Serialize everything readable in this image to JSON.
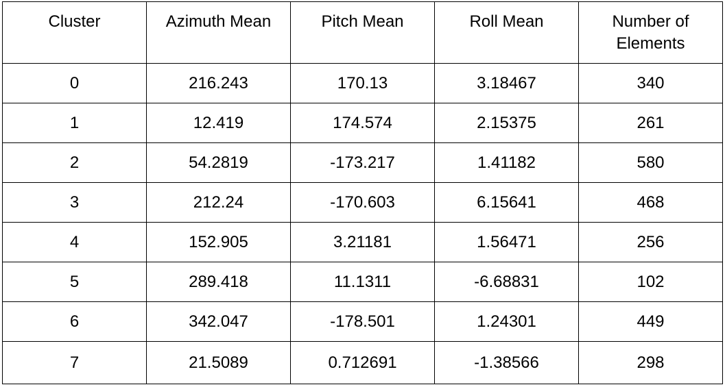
{
  "table": {
    "headers": [
      "Cluster",
      "Azimuth Mean",
      "Pitch Mean",
      "Roll Mean",
      "Number of Elements"
    ],
    "rows": [
      [
        "0",
        "216.243",
        "170.13",
        "3.18467",
        "340"
      ],
      [
        "1",
        "12.419",
        "174.574",
        "2.15375",
        "261"
      ],
      [
        "2",
        "54.2819",
        "-173.217",
        "1.41182",
        "580"
      ],
      [
        "3",
        "212.24",
        "-170.603",
        "6.15641",
        "468"
      ],
      [
        "4",
        "152.905",
        "3.21181",
        "1.56471",
        "256"
      ],
      [
        "5",
        "289.418",
        "11.1311",
        "-6.68831",
        "102"
      ],
      [
        "6",
        "342.047",
        "-178.501",
        "1.24301",
        "449"
      ],
      [
        "7",
        "21.5089",
        "0.712691",
        "-1.38566",
        "298"
      ]
    ]
  }
}
